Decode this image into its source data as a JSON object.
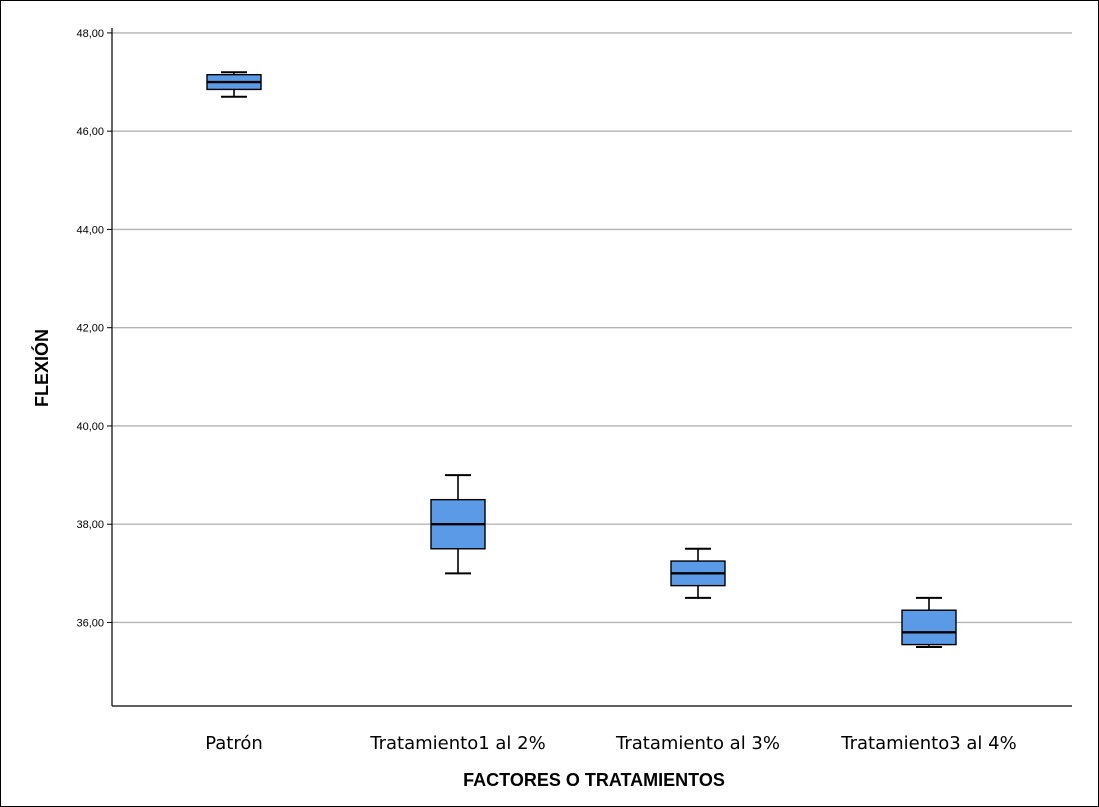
{
  "chart_data": {
    "type": "boxplot",
    "xlabel": "FACTORES O TRATAMIENTOS",
    "ylabel": "FLEXIÓN",
    "ylim": [
      34.3,
      48.1
    ],
    "yticks": [
      "48,00",
      "46,00",
      "44,00",
      "42,00",
      "40,00",
      "38,00",
      "36,00"
    ],
    "ytick_values": [
      48,
      46,
      44,
      42,
      40,
      38,
      36
    ],
    "grid": true,
    "box_color": "#5a9ae6",
    "categories": [
      "Patrón",
      "Tratamiento1 al 2%",
      "Tratamiento al 3%",
      "Tratamiento3 al 4%"
    ],
    "boxes": [
      {
        "min": 46.7,
        "q1": 46.85,
        "median": 47.0,
        "q3": 47.15,
        "max": 47.2
      },
      {
        "min": 37.0,
        "q1": 37.5,
        "median": 38.0,
        "q3": 38.5,
        "max": 39.0
      },
      {
        "min": 36.5,
        "q1": 36.75,
        "median": 37.0,
        "q3": 37.25,
        "max": 37.5
      },
      {
        "min": 35.5,
        "q1": 35.55,
        "median": 35.8,
        "q3": 36.25,
        "max": 36.5
      }
    ]
  }
}
